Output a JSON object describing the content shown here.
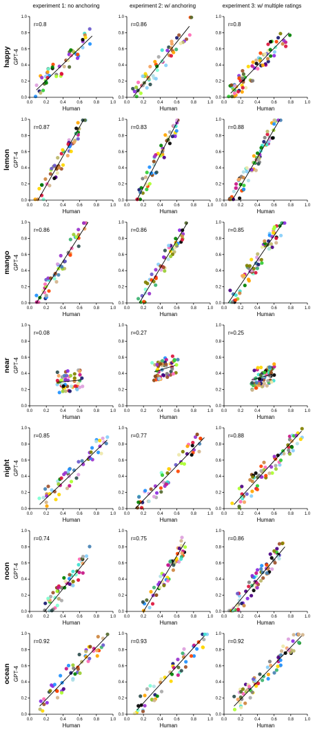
{
  "chart_data": {
    "type": "scatter",
    "columns": [
      "experiment 1: no anchoring",
      "experiment 2: w/ anchoring",
      "experiment 3: w/ multiple ratings"
    ],
    "xlabel": "Human",
    "ylabel": "GPT-4",
    "xlim": [
      0,
      1
    ],
    "ylim": [
      0,
      1
    ],
    "ticks": [
      "0.0",
      "0.2",
      "0.4",
      "0.6",
      "0.8",
      "1.0"
    ],
    "grid": false,
    "rows": [
      {
        "word": "happy",
        "panels": [
          {
            "r": "r=0.8",
            "fit": [
              [
                0.08,
                0.09
              ],
              [
                0.75,
                0.76
              ]
            ]
          },
          {
            "r": "r=0.86",
            "fit": [
              [
                0.08,
                0.01
              ],
              [
                0.75,
                0.88
              ]
            ]
          },
          {
            "r": "r=0.8",
            "fit": [
              [
                0.08,
                0.05
              ],
              [
                0.78,
                0.8
              ]
            ]
          }
        ]
      },
      {
        "word": "lemon",
        "panels": [
          {
            "r": "r=0.87",
            "fit": [
              [
                0.1,
                0.0
              ],
              [
                0.65,
                1.0
              ]
            ]
          },
          {
            "r": "r=0.83",
            "fit": [
              [
                0.12,
                0.0
              ],
              [
                0.62,
                1.0
              ]
            ]
          },
          {
            "r": "r=0.88",
            "fit": [
              [
                0.1,
                0.0
              ],
              [
                0.67,
                1.0
              ]
            ]
          }
        ]
      },
      {
        "word": "mango",
        "panels": [
          {
            "r": "r=0.86",
            "fit": [
              [
                0.08,
                0.0
              ],
              [
                0.7,
                1.0
              ]
            ]
          },
          {
            "r": "r=0.86",
            "fit": [
              [
                0.15,
                0.0
              ],
              [
                0.73,
                1.0
              ]
            ]
          },
          {
            "r": "r=0.85",
            "fit": [
              [
                0.05,
                0.0
              ],
              [
                0.71,
                1.0
              ]
            ]
          }
        ]
      },
      {
        "word": "near",
        "panels": [
          {
            "r": "r=0.08",
            "fit": [
              [
                0.33,
                0.29
              ],
              [
                0.62,
                0.32
              ]
            ]
          },
          {
            "r": "r=0.27",
            "fit": [
              [
                0.33,
                0.42
              ],
              [
                0.58,
                0.5
              ]
            ]
          },
          {
            "r": "r=0.25",
            "fit": [
              [
                0.33,
                0.32
              ],
              [
                0.58,
                0.39
              ]
            ]
          }
        ]
      },
      {
        "word": "night",
        "panels": [
          {
            "r": "r=0.85",
            "fit": [
              [
                0.12,
                0.05
              ],
              [
                0.93,
                0.85
              ]
            ]
          },
          {
            "r": "r=0.77",
            "fit": [
              [
                0.1,
                0.0
              ],
              [
                0.93,
                0.88
              ]
            ]
          },
          {
            "r": "r=0.88",
            "fit": [
              [
                0.12,
                0.05
              ],
              [
                0.93,
                0.96
              ]
            ]
          }
        ]
      },
      {
        "word": "noon",
        "panels": [
          {
            "r": "r=0.74",
            "fit": [
              [
                0.18,
                0.0
              ],
              [
                0.7,
                0.66
              ]
            ]
          },
          {
            "r": "r=0.75",
            "fit": [
              [
                0.2,
                0.0
              ],
              [
                0.7,
                0.86
              ]
            ]
          },
          {
            "r": "r=0.86",
            "fit": [
              [
                0.08,
                0.0
              ],
              [
                0.73,
                0.8
              ]
            ]
          }
        ]
      },
      {
        "word": "ocean",
        "panels": [
          {
            "r": "r=0.92",
            "fit": [
              [
                0.12,
                0.1
              ],
              [
                0.93,
                0.97
              ]
            ]
          },
          {
            "r": "r=0.93",
            "fit": [
              [
                0.12,
                0.05
              ],
              [
                0.93,
                0.97
              ]
            ]
          },
          {
            "r": "r=0.92",
            "fit": [
              [
                0.12,
                0.1
              ],
              [
                0.93,
                0.97
              ]
            ]
          }
        ]
      }
    ]
  }
}
